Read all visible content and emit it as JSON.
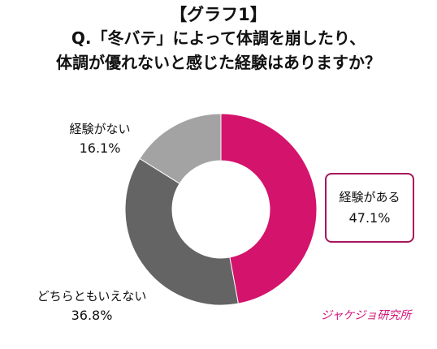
{
  "title": {
    "line1": "【グラフ1】",
    "line2": "Q.「冬バテ」によって体調を崩したり、",
    "line3": "体調が優れないと感じた経験はありますか？"
  },
  "chart_data": {
    "type": "pie",
    "donut": true,
    "slices": [
      {
        "label": "経験がある",
        "value": 47.1,
        "value_label": "47.1%",
        "color": "#d4136c"
      },
      {
        "label": "どちらともいえない",
        "value": 36.8,
        "value_label": "36.8%",
        "color": "#646464"
      },
      {
        "label": "経験がない",
        "value": 16.1,
        "value_label": "16.1%",
        "color": "#a3a3a3"
      }
    ],
    "start_angle": "top (12 o'clock)",
    "direction": "clockwise"
  },
  "logo": {
    "text": "ジャケジョ研究所"
  }
}
